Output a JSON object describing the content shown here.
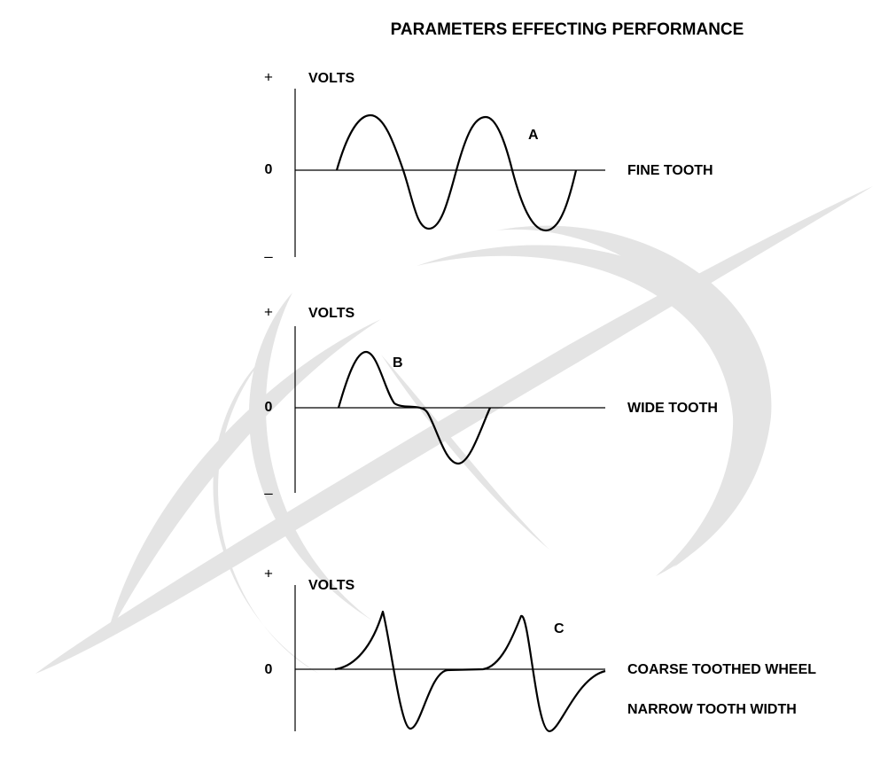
{
  "title": "PARAMETERS EFFECTING PERFORMANCE",
  "panels": [
    {
      "plus": "+",
      "axis_label": "VOLTS",
      "zero": "0",
      "minus": "–",
      "letter": "A",
      "description": [
        "FINE TOOTH"
      ]
    },
    {
      "plus": "+",
      "axis_label": "VOLTS",
      "zero": "0",
      "minus": "–",
      "letter": "B",
      "description": [
        "WIDE TOOTH"
      ]
    },
    {
      "plus": "+",
      "axis_label": "VOLTS",
      "zero": "0",
      "letter": "C",
      "description": [
        "COARSE TOOTHED WHEEL",
        "NARROW TOOTH WIDTH"
      ]
    }
  ]
}
